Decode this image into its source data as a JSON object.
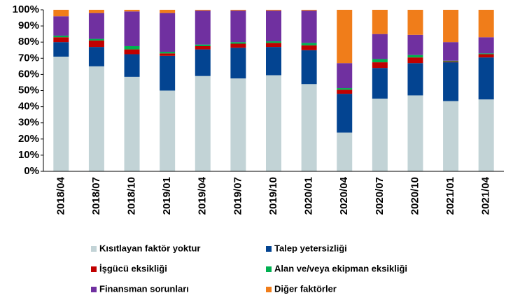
{
  "chart_data": {
    "type": "stacked_bar",
    "categories": [
      "2018/04",
      "2018/07",
      "2018/10",
      "2019/01",
      "2019/04",
      "2019/07",
      "2019/10",
      "2020/01",
      "2020/04",
      "2020/07",
      "2020/10",
      "2021/01",
      "2021/04"
    ],
    "series": [
      {
        "name": "Kısıtlayan faktör yoktur",
        "color": "#c2d3d6",
        "values": [
          71,
          65,
          58.5,
          50,
          59,
          57.5,
          59.5,
          54,
          24,
          45,
          47,
          43.5,
          44.5
        ]
      },
      {
        "name": "Talep yetersizliği",
        "color": "#034491",
        "values": [
          9,
          12,
          14,
          21.5,
          16.5,
          19,
          17.5,
          21,
          24,
          19,
          20,
          24,
          26
        ]
      },
      {
        "name": "İşgücü eksikliği",
        "color": "#c00000",
        "values": [
          3,
          4,
          3,
          1.5,
          2,
          2.5,
          2.5,
          3,
          2.5,
          3.5,
          3.5,
          0.5,
          2
        ]
      },
      {
        "name": "Alan ve/veya ekipman eksikliği",
        "color": "#00b050",
        "values": [
          1,
          1,
          2,
          1,
          1,
          1,
          1,
          1.5,
          1,
          2,
          1.5,
          0.5,
          0.5
        ]
      },
      {
        "name": "Finansman sorunları",
        "color": "#7030a0",
        "values": [
          12,
          16,
          21.5,
          24,
          21,
          19.5,
          19,
          20,
          15.5,
          15.5,
          12.5,
          11.5,
          10
        ]
      },
      {
        "name": "Diğer faktörler",
        "color": "#f07d1a",
        "values": [
          4,
          2,
          1,
          2,
          0.5,
          0.5,
          0.5,
          0.5,
          33,
          15,
          15.5,
          20,
          17
        ]
      }
    ],
    "ylim": [
      0,
      100
    ],
    "yticks": [
      {
        "value": 0,
        "label": "0%"
      },
      {
        "value": 10,
        "label": "10%"
      },
      {
        "value": 20,
        "label": "20%"
      },
      {
        "value": 30,
        "label": "30%"
      },
      {
        "value": 40,
        "label": "40%"
      },
      {
        "value": 50,
        "label": "50%"
      },
      {
        "value": 60,
        "label": "60%"
      },
      {
        "value": 70,
        "label": "70%"
      },
      {
        "value": 80,
        "label": "80%"
      },
      {
        "value": 90,
        "label": "90%"
      },
      {
        "value": 100,
        "label": "100%"
      }
    ],
    "grid": false
  }
}
